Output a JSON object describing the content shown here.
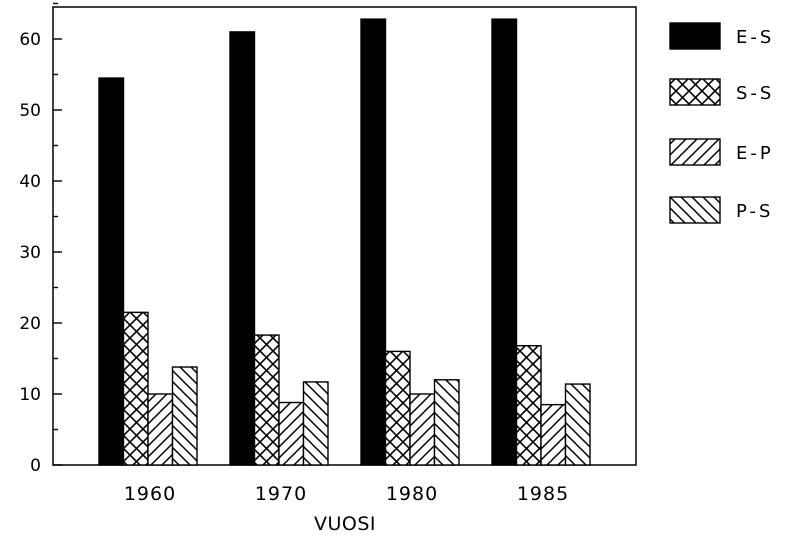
{
  "chart_data": {
    "type": "bar",
    "title": "",
    "xlabel": "VUOSI",
    "ylabel": "",
    "ylim": [
      0,
      65
    ],
    "yticks": [
      0,
      10,
      20,
      30,
      40,
      50,
      60
    ],
    "categories": [
      "1960",
      "1970",
      "1980",
      "1985"
    ],
    "series": [
      {
        "name": "E-S",
        "pattern": "solid",
        "values": [
          54.5,
          61,
          62.8,
          62.8
        ]
      },
      {
        "name": "S-S",
        "pattern": "crosshatch",
        "values": [
          21.5,
          18.3,
          16,
          16.8
        ]
      },
      {
        "name": "E-P",
        "pattern": "diagonal-forward",
        "values": [
          10,
          8.8,
          10,
          8.5
        ]
      },
      {
        "name": "P-S",
        "pattern": "diagonal-backward",
        "values": [
          13.8,
          11.7,
          12,
          11.4
        ]
      }
    ],
    "legend_position": "right",
    "grid": false
  }
}
